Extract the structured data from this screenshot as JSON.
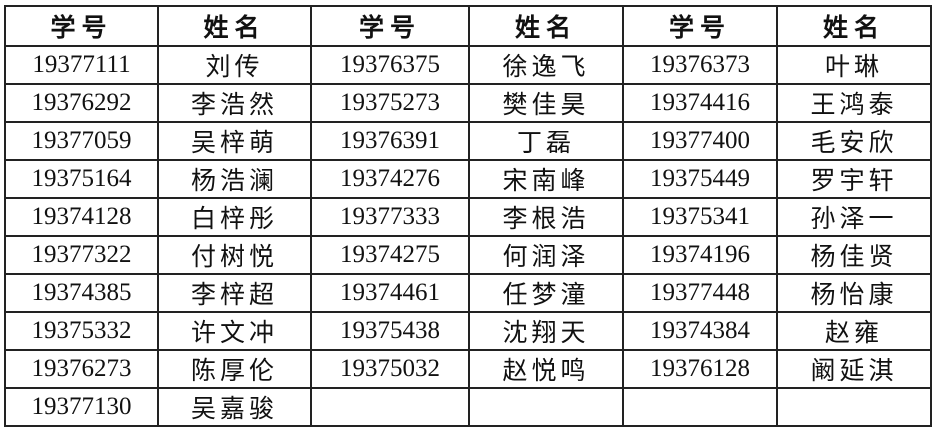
{
  "headers": [
    "学号",
    "姓名",
    "学号",
    "姓名",
    "学号",
    "姓名"
  ],
  "rows": [
    [
      "19377111",
      "刘传",
      "19376375",
      "徐逸飞",
      "19376373",
      "叶琳"
    ],
    [
      "19376292",
      "李浩然",
      "19375273",
      "樊佳昊",
      "19374416",
      "王鸿泰"
    ],
    [
      "19377059",
      "吴梓萌",
      "19376391",
      "丁磊",
      "19377400",
      "毛安欣"
    ],
    [
      "19375164",
      "杨浩澜",
      "19374276",
      "宋南峰",
      "19375449",
      "罗宇轩"
    ],
    [
      "19374128",
      "白梓彤",
      "19377333",
      "李根浩",
      "19375341",
      "孙泽一"
    ],
    [
      "19377322",
      "付树悦",
      "19374275",
      "何润泽",
      "19374196",
      "杨佳贤"
    ],
    [
      "19374385",
      "李梓超",
      "19374461",
      "任梦潼",
      "19377448",
      "杨怡康"
    ],
    [
      "19375332",
      "许文冲",
      "19375438",
      "沈翔天",
      "19374384",
      "赵雍"
    ],
    [
      "19376273",
      "陈厚伦",
      "19375032",
      "赵悦鸣",
      "19376128",
      "阚延淇"
    ],
    [
      "19377130",
      "吴嘉骏",
      "",
      "",
      "",
      ""
    ]
  ]
}
